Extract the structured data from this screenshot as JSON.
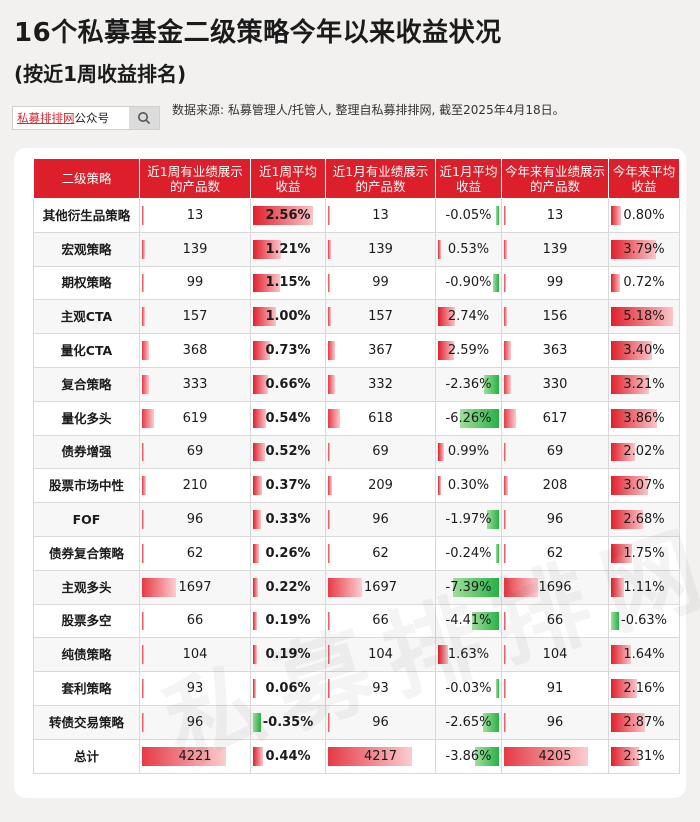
{
  "title": "16个私募基金二级策略今年以来收益状况",
  "subtitle": "(按近1周收益排名)",
  "search_box": {
    "brand": "私募排排网",
    "suffix": "公众号"
  },
  "source_note": "数据来源: 私募管理人/托管人, 整理自私募排排网, 截至2025年4月18日。",
  "watermark": "私募排排网",
  "colors": {
    "header_bg": "#dc1f2a",
    "positive": "#e0202c",
    "negative": "#27b245"
  },
  "chart_data": {
    "type": "table",
    "columns": [
      "二级策略",
      "近1周有业绩展示的产品数",
      "近1周平均收益",
      "近1月有业绩展示的产品数",
      "近1月平均收益",
      "今年来有业绩展示的产品数",
      "今年来平均收益"
    ],
    "rows": [
      [
        "其他衍生品策略",
        13,
        "2.56%",
        13,
        "-0.05%",
        13,
        "0.80%"
      ],
      [
        "宏观策略",
        139,
        "1.21%",
        139,
        "0.53%",
        139,
        "3.79%"
      ],
      [
        "期权策略",
        99,
        "1.15%",
        99,
        "-0.90%",
        99,
        "0.72%"
      ],
      [
        "主观CTA",
        157,
        "1.00%",
        157,
        "2.74%",
        156,
        "5.18%"
      ],
      [
        "量化CTA",
        368,
        "0.73%",
        367,
        "2.59%",
        363,
        "3.40%"
      ],
      [
        "复合策略",
        333,
        "0.66%",
        332,
        "-2.36%",
        330,
        "3.21%"
      ],
      [
        "量化多头",
        619,
        "0.54%",
        618,
        "-6.26%",
        617,
        "3.86%"
      ],
      [
        "债券增强",
        69,
        "0.52%",
        69,
        "0.99%",
        69,
        "2.02%"
      ],
      [
        "股票市场中性",
        210,
        "0.37%",
        209,
        "0.30%",
        208,
        "3.07%"
      ],
      [
        "FOF",
        96,
        "0.33%",
        96,
        "-1.97%",
        96,
        "2.68%"
      ],
      [
        "债券复合策略",
        62,
        "0.26%",
        62,
        "-0.24%",
        62,
        "1.75%"
      ],
      [
        "主观多头",
        1697,
        "0.22%",
        1697,
        "-7.39%",
        1696,
        "1.11%"
      ],
      [
        "股票多空",
        66,
        "0.19%",
        66,
        "-4.41%",
        66,
        "-0.63%"
      ],
      [
        "纯债策略",
        104,
        "0.19%",
        104,
        "1.63%",
        104,
        "1.64%"
      ],
      [
        "套利策略",
        93,
        "0.06%",
        93,
        "-0.03%",
        91,
        "2.16%"
      ],
      [
        "转债交易策略",
        96,
        "-0.35%",
        96,
        "-2.65%",
        96,
        "2.87%"
      ],
      [
        "总计",
        4221,
        "0.44%",
        4217,
        "-3.86%",
        4205,
        "2.31%"
      ]
    ]
  }
}
